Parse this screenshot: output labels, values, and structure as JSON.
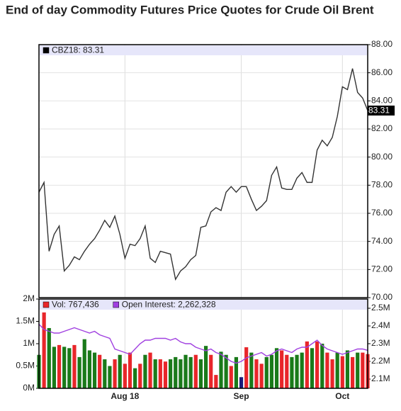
{
  "chart_data": [
    {
      "type": "line",
      "title": "End of day Commodity Futures Price Quotes for Crude Oil Brent",
      "categories": [
        null,
        null,
        null,
        null,
        null,
        null,
        null,
        null,
        null,
        null,
        null,
        null,
        null,
        null,
        null,
        null,
        null,
        "Aug 18",
        null,
        null,
        null,
        null,
        null,
        null,
        null,
        null,
        null,
        null,
        null,
        null,
        null,
        null,
        null,
        null,
        null,
        null,
        null,
        null,
        null,
        null,
        "Sep",
        null,
        null,
        null,
        null,
        null,
        null,
        null,
        null,
        null,
        null,
        null,
        null,
        null,
        null,
        null,
        null,
        null,
        null,
        null,
        "Oct",
        null,
        null,
        null,
        null,
        null
      ],
      "series": [
        {
          "name": "CBZ18: 83.31",
          "color": "#333333",
          "values": [
            77.5,
            78.2,
            73.3,
            74.5,
            75.1,
            71.9,
            72.3,
            72.9,
            72.7,
            73.3,
            73.8,
            74.2,
            74.8,
            75.5,
            75.0,
            75.8,
            74.5,
            72.8,
            73.8,
            73.7,
            74.2,
            75.1,
            72.8,
            72.5,
            73.3,
            73.2,
            73.1,
            71.3,
            71.9,
            72.2,
            72.7,
            73.0,
            75.0,
            75.1,
            76.1,
            76.4,
            76.2,
            77.5,
            77.9,
            77.5,
            77.9,
            77.9,
            77.0,
            76.2,
            76.5,
            76.9,
            78.7,
            79.3,
            77.8,
            77.7,
            77.7,
            78.5,
            78.9,
            78.2,
            78.2,
            80.5,
            81.2,
            80.8,
            81.4,
            82.9,
            85.0,
            84.8,
            86.3,
            84.6,
            84.2,
            83.31
          ],
          "value_labels": [
            null,
            null,
            null,
            null,
            null,
            null,
            null,
            null,
            null,
            null,
            null,
            null,
            null,
            null,
            null,
            null,
            null,
            null,
            null,
            null,
            null,
            null,
            null,
            null,
            null,
            null,
            null,
            null,
            null,
            null,
            null,
            null,
            null,
            null,
            null,
            null,
            null,
            null,
            null,
            null,
            null,
            null,
            null,
            null,
            null,
            null,
            null,
            null,
            null,
            null,
            null,
            null,
            null,
            null,
            null,
            null,
            null,
            null,
            null,
            null,
            null,
            null,
            null,
            null,
            null,
            "83.31"
          ]
        }
      ],
      "ylim": [
        70,
        88
      ],
      "yticks": [
        {
          "value": 70,
          "label": "70.00"
        },
        {
          "value": 72,
          "label": "72.00"
        },
        {
          "value": 74,
          "label": "74.00"
        },
        {
          "value": 76,
          "label": "76.00"
        },
        {
          "value": 78,
          "label": "78.00"
        },
        {
          "value": 80,
          "label": "80.00"
        },
        {
          "value": 82,
          "label": "82.00"
        },
        {
          "value": 84,
          "label": "84.00"
        },
        {
          "value": 86,
          "label": "86.00"
        },
        {
          "value": 88,
          "label": "88.00"
        }
      ],
      "grid": true
    },
    {
      "type": "bar",
      "categories": [
        null,
        null,
        null,
        null,
        null,
        null,
        null,
        null,
        null,
        null,
        null,
        null,
        null,
        null,
        null,
        null,
        null,
        "Aug 18",
        null,
        null,
        null,
        null,
        null,
        null,
        null,
        null,
        null,
        null,
        null,
        null,
        null,
        null,
        null,
        null,
        null,
        null,
        null,
        null,
        null,
        null,
        "Sep",
        null,
        null,
        null,
        null,
        null,
        null,
        null,
        null,
        null,
        null,
        null,
        null,
        null,
        null,
        null,
        null,
        null,
        null,
        null,
        "Oct",
        null,
        null,
        null,
        null,
        null
      ],
      "series": [
        {
          "name": "Vol: 767,436",
          "type": "bar",
          "color": "#e8262a",
          "values": [
            0.75,
            1.7,
            1.35,
            0.93,
            0.97,
            0.93,
            0.9,
            0.97,
            0.7,
            1.1,
            0.85,
            0.8,
            0.75,
            0.65,
            0.5,
            0.65,
            0.75,
            0.55,
            0.8,
            0.45,
            0.55,
            0.75,
            0.8,
            0.65,
            0.65,
            0.6,
            0.65,
            0.7,
            0.65,
            0.75,
            0.7,
            0.75,
            0.65,
            0.95,
            0.75,
            0.3,
            0.82,
            0.75,
            0.5,
            0.7,
            0.25,
            0.92,
            0.8,
            0.65,
            0.55,
            0.7,
            0.75,
            0.9,
            0.85,
            0.75,
            0.7,
            0.75,
            0.8,
            1.05,
            0.9,
            1.05,
            1.0,
            0.8,
            0.65,
            0.8,
            0.72,
            0.85,
            0.7,
            0.8,
            0.8,
            0.767
          ],
          "colors": [
            "#1a7a1a",
            "#e8262a",
            "#1a7a1a",
            "#1a7a1a",
            "#e8262a",
            "#1a7a1a",
            "#1a7a1a",
            "#e8262a",
            "#1a7a1a",
            "#1a7a1a",
            "#1a7a1a",
            "#1a7a1a",
            "#e8262a",
            "#1a7a1a",
            "#1a7a1a",
            "#e8262a",
            "#1a7a1a",
            "#e8262a",
            "#e8262a",
            "#1a7a1a",
            "#e8262a",
            "#1a7a1a",
            "#e8262a",
            "#1a7a1a",
            "#e8262a",
            "#e8262a",
            "#1a7a1a",
            "#1a7a1a",
            "#1a7a1a",
            "#1a7a1a",
            "#1a7a1a",
            "#e8262a",
            "#1a7a1a",
            "#1a7a1a",
            "#e8262a",
            "#e8262a",
            "#1a7a1a",
            "#1a7a1a",
            "#e8262a",
            "#1a7a1a",
            "#1a1a7a",
            "#e8262a",
            "#1a7a1a",
            "#e8262a",
            "#e8262a",
            "#1a7a1a",
            "#1a7a1a",
            "#1a7a1a",
            "#e8262a",
            "#e8262a",
            "#1a7a1a",
            "#1a7a1a",
            "#1a7a1a",
            "#e8262a",
            "#1a7a1a",
            "#e8262a",
            "#1a7a1a",
            "#e8262a",
            "#e8262a",
            "#1a7a1a",
            "#e8262a",
            "#1a7a1a",
            "#e8262a",
            "#1a7a1a",
            "#e8262a",
            "#e8262a"
          ]
        },
        {
          "name": "Open Interest: 2,262,328",
          "type": "line",
          "axis": "y2",
          "color": "#a040e0",
          "values": [
            2.41,
            2.38,
            2.37,
            2.36,
            2.36,
            2.37,
            2.38,
            2.39,
            2.38,
            2.37,
            2.36,
            2.37,
            2.35,
            2.34,
            2.33,
            2.27,
            2.26,
            2.25,
            2.24,
            2.27,
            2.3,
            2.32,
            2.32,
            2.33,
            2.33,
            2.33,
            2.32,
            2.33,
            2.31,
            2.3,
            2.3,
            2.28,
            2.27,
            2.26,
            2.27,
            2.25,
            2.24,
            2.22,
            2.2,
            2.19,
            2.2,
            2.22,
            2.23,
            2.24,
            2.25,
            2.23,
            2.24,
            2.26,
            2.27,
            2.26,
            2.25,
            2.27,
            2.28,
            2.28,
            2.3,
            2.32,
            2.29,
            2.27,
            2.26,
            2.25,
            2.24,
            2.25,
            2.26,
            2.27,
            2.27,
            2.262328
          ]
        }
      ],
      "ylim": [
        0,
        2
      ],
      "yticks": [
        {
          "value": 0,
          "label": "0M"
        },
        {
          "value": 0.5,
          "label": "0.5M"
        },
        {
          "value": 1,
          "label": "1M"
        },
        {
          "value": 1.5,
          "label": "1.5M"
        },
        {
          "value": 2,
          "label": "2M"
        }
      ],
      "y2lim": [
        2.048,
        2.552
      ],
      "y2ticks": [
        {
          "value": 2.1,
          "label": "2.1M"
        },
        {
          "value": 2.2,
          "label": "2.2M"
        },
        {
          "value": 2.3,
          "label": "2.3M"
        },
        {
          "value": 2.4,
          "label": "2.4M"
        },
        {
          "value": 2.5,
          "label": "2.5M"
        }
      ]
    }
  ]
}
